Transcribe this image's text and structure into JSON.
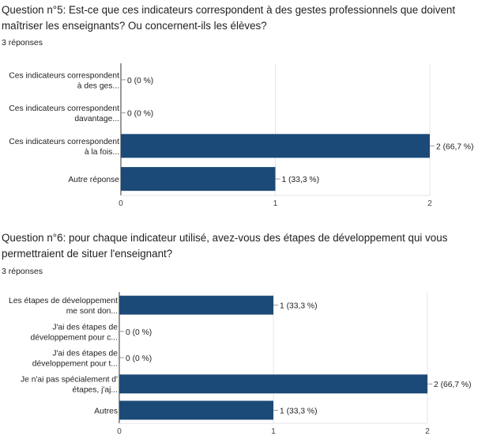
{
  "colors": {
    "bar": "#1c4a78",
    "grid": "#e6e6e6",
    "axis": "#333333",
    "connector": "#999999"
  },
  "questions": [
    {
      "title": "Question n°5: Est-ce que ces indicateurs correspondent à des gestes professionnels que doivent maîtriser les enseignants? Ou concernent-ils les élèves?",
      "responses": "3 réponses"
    },
    {
      "title": "Question n°6: pour chaque indicateur utilisé, avez-vous des étapes de développement qui vous permettraient de situer l'enseignant?",
      "responses": "3 réponses"
    }
  ],
  "chart_data": [
    {
      "type": "bar",
      "orientation": "horizontal",
      "categories": [
        [
          "Ces indicateurs correspondent",
          "à des ges..."
        ],
        [
          "Ces indicateurs correspondent",
          "davantage..."
        ],
        [
          "Ces indicateurs correspondent",
          "à la fois..."
        ],
        [
          "Autre réponse"
        ]
      ],
      "values": [
        0,
        0,
        2,
        1
      ],
      "value_labels": [
        "0 (0 %)",
        "0 (0 %)",
        "2 (66,7 %)",
        "1 (33,3 %)"
      ],
      "xlim": [
        0,
        2
      ],
      "xticks": [
        "0",
        "1",
        "2"
      ],
      "grid": true
    },
    {
      "type": "bar",
      "orientation": "horizontal",
      "categories": [
        [
          "Les étapes de développement",
          "me sont don..."
        ],
        [
          "J'ai des étapes de",
          "développement pour c..."
        ],
        [
          "J'ai des étapes de",
          "développement pour t..."
        ],
        [
          "Je n'ai pas spécialement d'",
          "étapes, j'aj..."
        ],
        [
          "Autres"
        ]
      ],
      "values": [
        1,
        0,
        0,
        2,
        1
      ],
      "value_labels": [
        "1 (33,3 %)",
        "0 (0 %)",
        "0 (0 %)",
        "2 (66,7 %)",
        "1 (33,3 %)"
      ],
      "xlim": [
        0,
        2
      ],
      "xticks": [
        "0",
        "1",
        "2"
      ],
      "grid": true
    }
  ]
}
